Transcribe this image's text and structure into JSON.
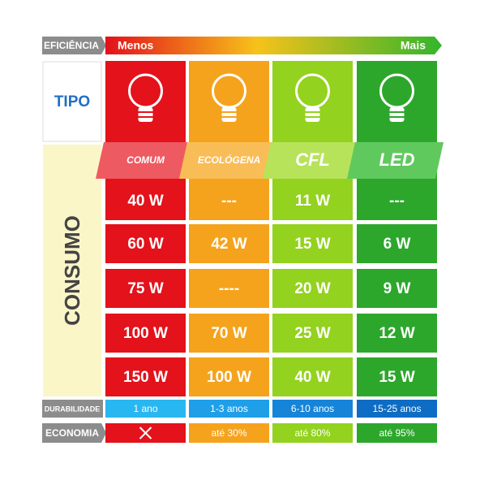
{
  "header": {
    "label": "EFICIÊNCIA",
    "low": "Menos",
    "high": "Mais"
  },
  "tipo_label": "TIPO",
  "consumo_label": "CONSUMO",
  "durabilidade_label": "DURABILIDADE",
  "economia_label": "ECONOMIA",
  "columns": [
    {
      "name": "COMUM",
      "consumo": [
        "40 W",
        "60 W",
        "75 W",
        "100 W",
        "150 W"
      ],
      "durabilidade": "1 ano",
      "economia": null
    },
    {
      "name": "ECOLÓGENA",
      "consumo": [
        "---",
        "42 W",
        "----",
        "70 W",
        "100 W"
      ],
      "durabilidade": "1-3 anos",
      "economia": "até 30%"
    },
    {
      "name": "CFL",
      "consumo": [
        "11 W",
        "15 W",
        "20 W",
        "25 W",
        "40 W"
      ],
      "durabilidade": "6-10 anos",
      "economia": "até 80%"
    },
    {
      "name": "LED",
      "consumo": [
        "---",
        "6 W",
        "9 W",
        "12 W",
        "15 W"
      ],
      "durabilidade": "15-25 anos",
      "economia": "até 95%"
    }
  ]
}
